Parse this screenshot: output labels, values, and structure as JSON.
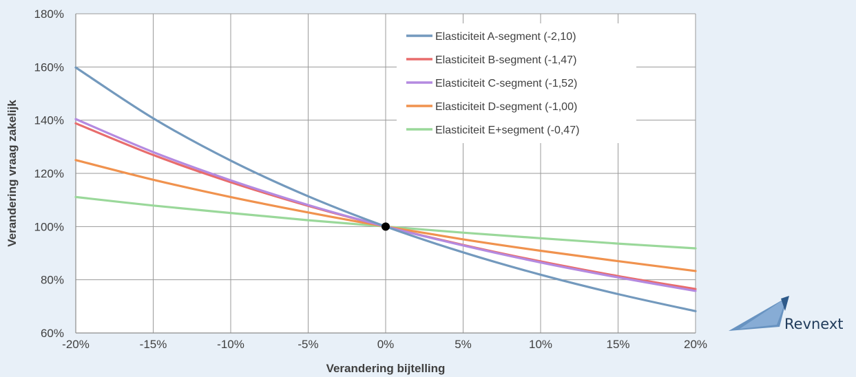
{
  "chart_data": {
    "type": "line",
    "xlabel": "Verandering bijtelling",
    "ylabel": "Verandering vraag zakelijk",
    "xlim": [
      -20,
      20
    ],
    "ylim": [
      60,
      180
    ],
    "x_ticks": [
      "-20%",
      "-15%",
      "-10%",
      "-5%",
      "0%",
      "5%",
      "10%",
      "15%",
      "20%"
    ],
    "y_ticks": [
      "60%",
      "80%",
      "100%",
      "120%",
      "140%",
      "160%",
      "180%"
    ],
    "grid": true,
    "legend_position": "top-right",
    "x": [
      -20,
      -15,
      -10,
      -5,
      0,
      5,
      10,
      15,
      20
    ],
    "series": [
      {
        "name": "Elasticiteit A-segment (-2,10)",
        "color": "#7399bd",
        "values": [
          159.8,
          140.7,
          124.8,
          111.4,
          100.0,
          90.3,
          81.9,
          74.6,
          68.2
        ]
      },
      {
        "name": "Elasticiteit B-segment (-1,47)",
        "color": "#e86c6c",
        "values": [
          138.8,
          126.9,
          116.7,
          107.8,
          100.0,
          93.1,
          86.9,
          81.4,
          76.5
        ]
      },
      {
        "name": "Elasticiteit C-segment (-1,52)",
        "color": "#b48ae0",
        "values": [
          140.4,
          128.0,
          117.4,
          108.1,
          100.0,
          92.9,
          86.5,
          80.9,
          75.8
        ]
      },
      {
        "name": "Elasticiteit D-segment (-1,00)",
        "color": "#f0924e",
        "values": [
          125.0,
          117.6,
          111.1,
          105.3,
          100.0,
          95.2,
          90.9,
          87.0,
          83.3
        ]
      },
      {
        "name": "Elasticiteit E+segment (-0,47)",
        "color": "#9ad89a",
        "values": [
          111.1,
          107.9,
          105.1,
          102.4,
          100.0,
          97.7,
          95.6,
          93.6,
          91.8
        ]
      }
    ],
    "marker": {
      "x": 0,
      "y": 100
    }
  },
  "logo": {
    "text": "Revnext"
  },
  "colors": {
    "grid": "#9a9a9a",
    "axis": "#8c8c8c",
    "text": "#404040",
    "background": "#e8f0f8"
  }
}
